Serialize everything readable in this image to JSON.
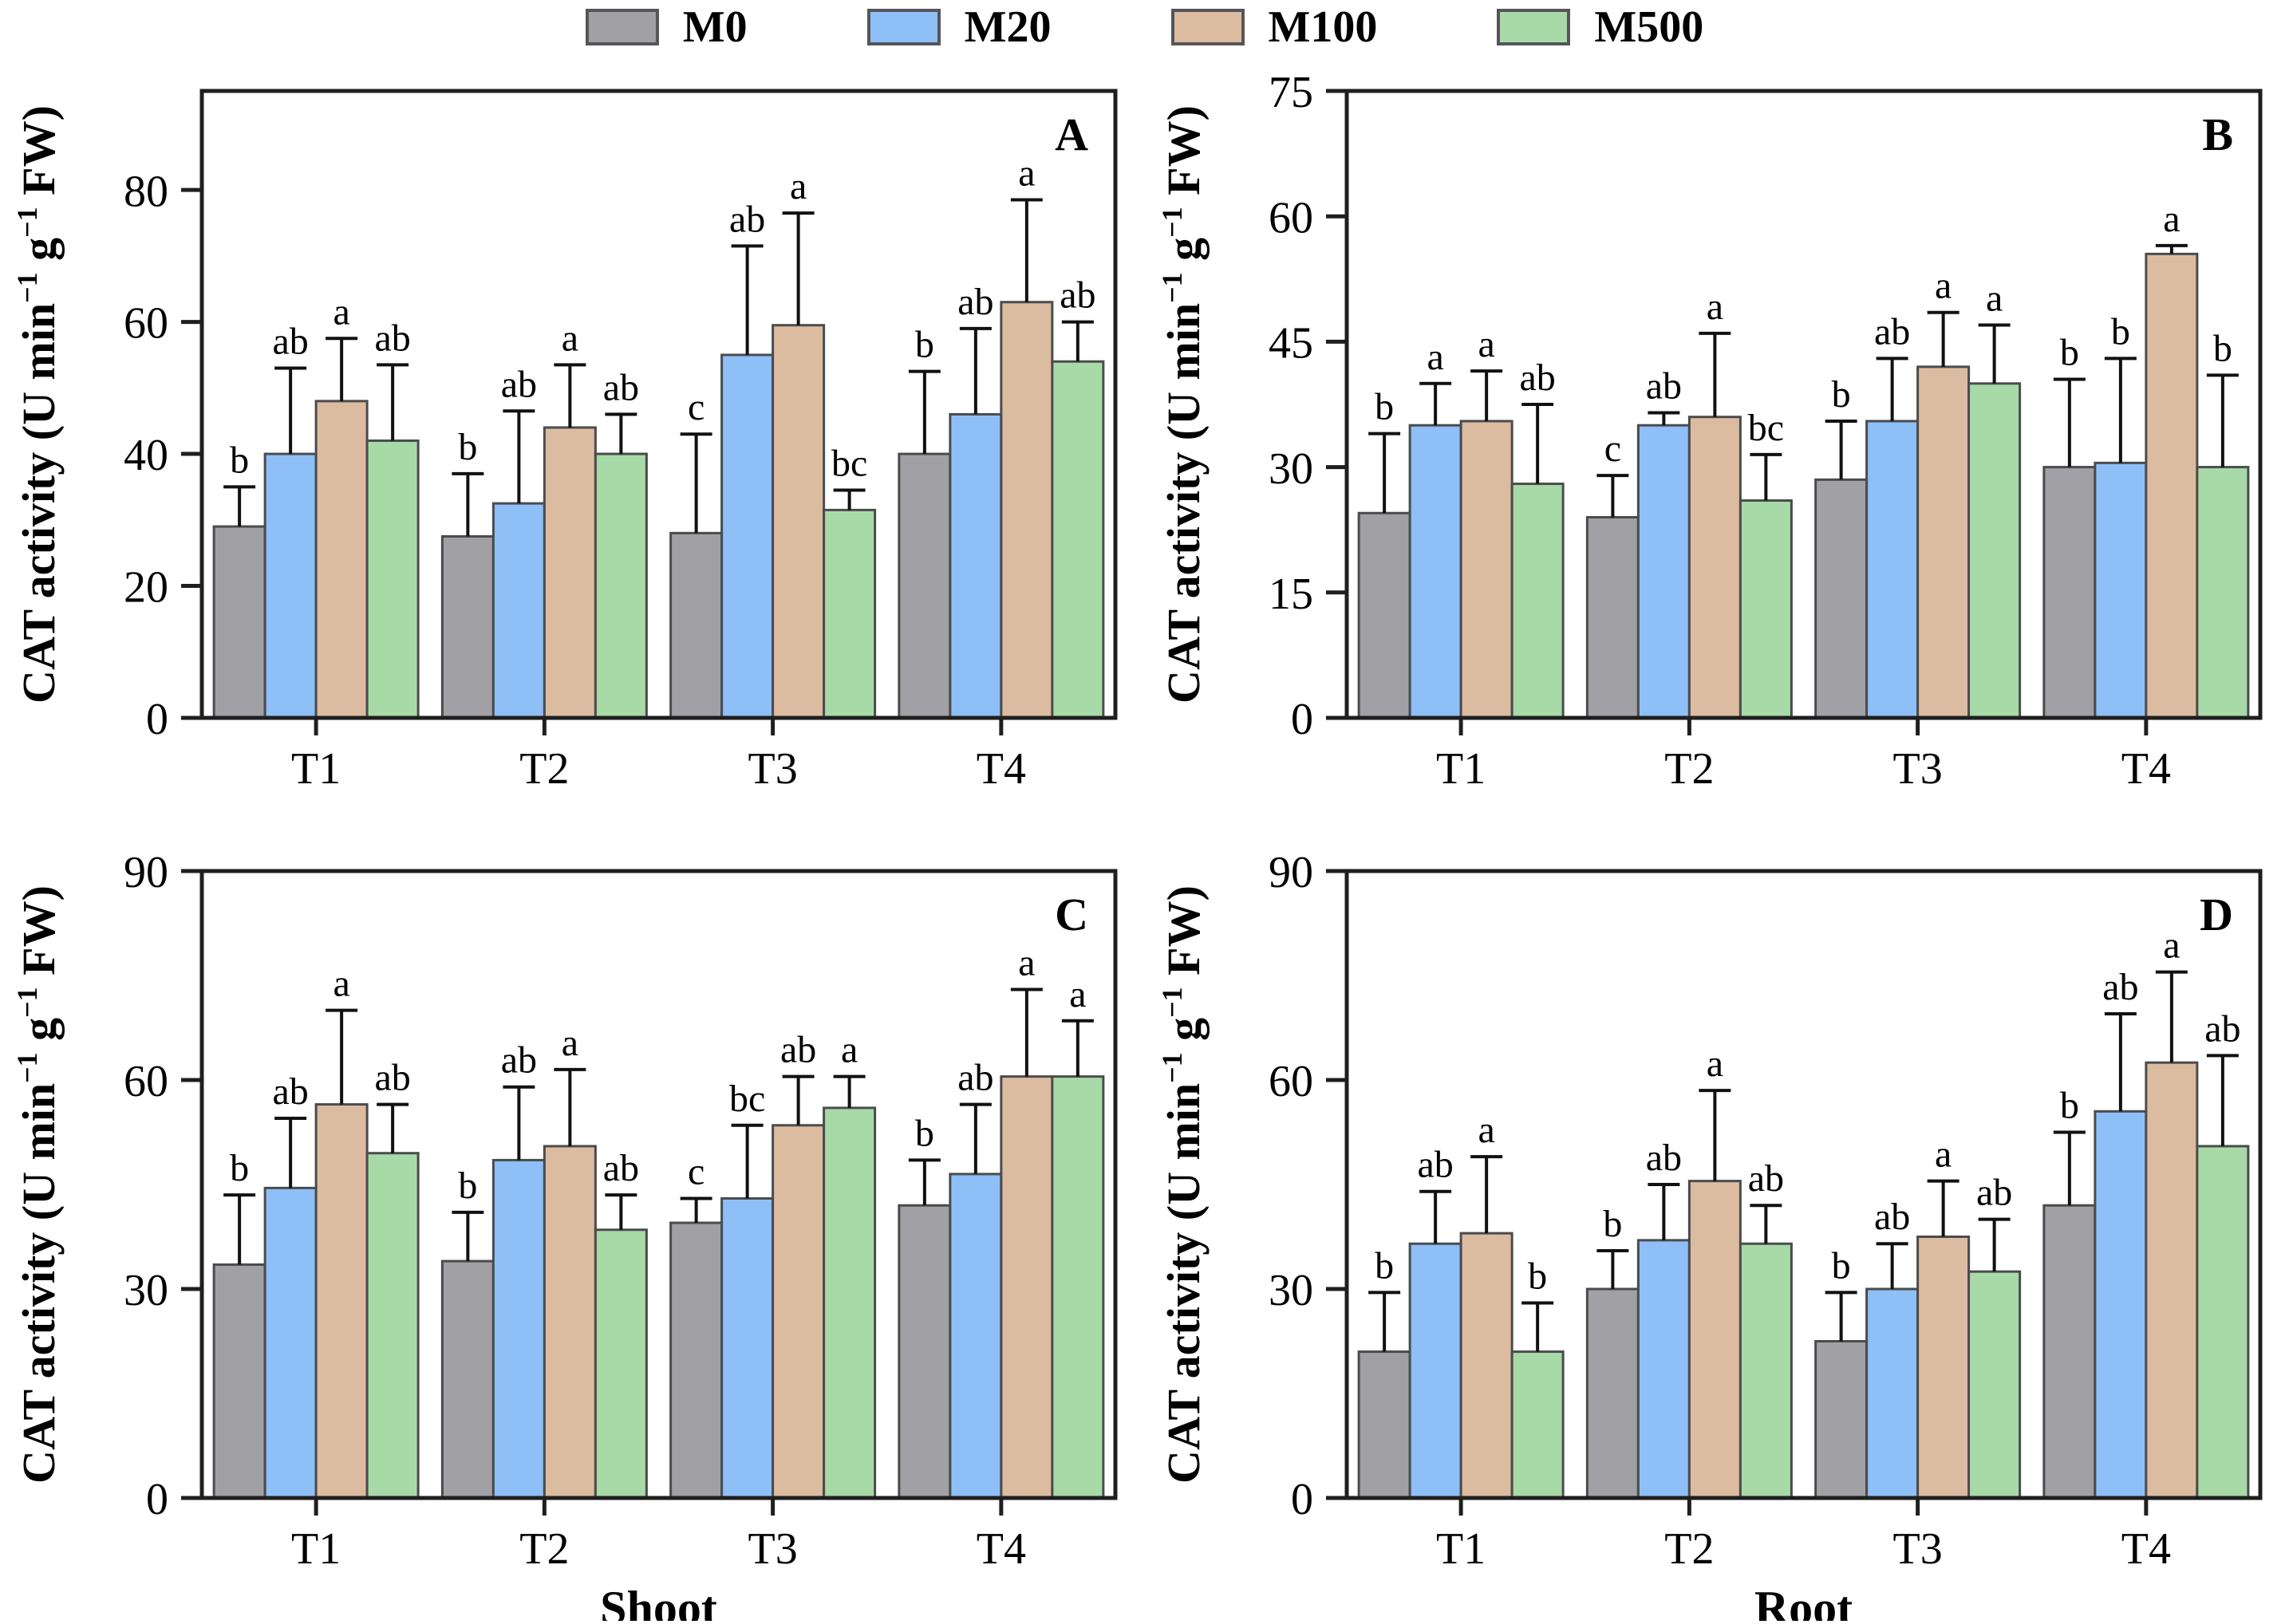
{
  "figure": {
    "background": "#ffffff",
    "axis_color": "#1f1f1f",
    "bar_border_color": "#4b4b4e",
    "error_bar_color": "#111111",
    "y_axis_label": "CAT activity (U min⁻¹ g⁻¹ FW)",
    "y_axis_label_parts": [
      {
        "t": "CAT activity (U min"
      },
      {
        "t": "−1",
        "sup": true
      },
      {
        "t": " g",
        "sup": false
      },
      {
        "t": "−1",
        "sup": true
      },
      {
        "t": " FW)",
        "sup": false
      }
    ]
  },
  "legend": {
    "position": "top-center",
    "items": [
      {
        "label": "M0",
        "color": "#A0A0A5"
      },
      {
        "label": "M20",
        "color": "#8EBFF7"
      },
      {
        "label": "M100",
        "color": "#DCBCA0"
      },
      {
        "label": "M500",
        "color": "#A8DAA8"
      }
    ]
  },
  "chart_data": [
    {
      "type": "bar",
      "panel_letter": "A",
      "tissue": "Shoot",
      "xlabel": "",
      "ylabel": "CAT activity (U min⁻¹ g⁻¹ FW)",
      "categories": [
        "T1",
        "T2",
        "T3",
        "T4"
      ],
      "ylim": [
        0,
        95
      ],
      "yticks": [
        0,
        20,
        40,
        60,
        80
      ],
      "grid": false,
      "series": [
        {
          "name": "M0",
          "values": [
            29,
            27.5,
            28,
            40
          ],
          "sd": [
            6,
            9.5,
            15,
            12.5
          ],
          "letters": [
            "b",
            "b",
            "c",
            "b"
          ]
        },
        {
          "name": "M20",
          "values": [
            40,
            32.5,
            55,
            46
          ],
          "sd": [
            13,
            14,
            16.5,
            13
          ],
          "letters": [
            "ab",
            "ab",
            "ab",
            "ab"
          ]
        },
        {
          "name": "M100",
          "values": [
            48,
            44,
            59.5,
            63
          ],
          "sd": [
            9.5,
            9.5,
            17,
            15.5
          ],
          "letters": [
            "a",
            "a",
            "a",
            "a"
          ]
        },
        {
          "name": "M500",
          "values": [
            42,
            40,
            31.5,
            54
          ],
          "sd": [
            11.5,
            6,
            3,
            6
          ],
          "letters": [
            "ab",
            "ab",
            "bc",
            "ab"
          ]
        }
      ]
    },
    {
      "type": "bar",
      "panel_letter": "B",
      "tissue": "Root",
      "xlabel": "",
      "ylabel": "CAT activity (U min⁻¹ g⁻¹ FW)",
      "categories": [
        "T1",
        "T2",
        "T3",
        "T4"
      ],
      "ylim": [
        0,
        75
      ],
      "yticks": [
        0,
        15,
        30,
        45,
        60,
        75
      ],
      "grid": false,
      "series": [
        {
          "name": "M0",
          "values": [
            24.5,
            24,
            28.5,
            30
          ],
          "sd": [
            9.5,
            5,
            7,
            10.5
          ],
          "letters": [
            "b",
            "c",
            "b",
            "b"
          ]
        },
        {
          "name": "M20",
          "values": [
            35,
            35,
            35.5,
            30.5
          ],
          "sd": [
            5,
            1.5,
            7.5,
            12.5
          ],
          "letters": [
            "a",
            "ab",
            "ab",
            "b"
          ]
        },
        {
          "name": "M100",
          "values": [
            35.5,
            36,
            42,
            55.5
          ],
          "sd": [
            6,
            10,
            6.5,
            1
          ],
          "letters": [
            "a",
            "a",
            "a",
            "a"
          ]
        },
        {
          "name": "M500",
          "values": [
            28,
            26,
            40,
            30
          ],
          "sd": [
            9.5,
            5.5,
            7,
            11
          ],
          "letters": [
            "ab",
            "bc",
            "a",
            "b"
          ]
        }
      ]
    },
    {
      "type": "bar",
      "panel_letter": "C",
      "tissue": "Shoot",
      "xlabel": "Shoot",
      "ylabel": "CAT activity (U min⁻¹ g⁻¹ FW)",
      "categories": [
        "T1",
        "T2",
        "T3",
        "T4"
      ],
      "ylim": [
        0,
        90
      ],
      "yticks": [
        0,
        30,
        60,
        90
      ],
      "grid": false,
      "series": [
        {
          "name": "M0",
          "values": [
            33.5,
            34,
            39.5,
            42
          ],
          "sd": [
            10,
            7,
            3.5,
            6.5
          ],
          "letters": [
            "b",
            "b",
            "c",
            "b"
          ]
        },
        {
          "name": "M20",
          "values": [
            44.5,
            48.5,
            43,
            46.5
          ],
          "sd": [
            10,
            10.5,
            10.5,
            10
          ],
          "letters": [
            "ab",
            "ab",
            "bc",
            "ab"
          ]
        },
        {
          "name": "M100",
          "values": [
            56.5,
            50.5,
            53.5,
            60.5
          ],
          "sd": [
            13.5,
            11,
            7,
            12.5
          ],
          "letters": [
            "a",
            "a",
            "ab",
            "a"
          ]
        },
        {
          "name": "M500",
          "values": [
            49.5,
            38.5,
            56,
            60.5
          ],
          "sd": [
            7,
            5,
            4.5,
            8
          ],
          "letters": [
            "ab",
            "ab",
            "a",
            "a"
          ]
        }
      ]
    },
    {
      "type": "bar",
      "panel_letter": "D",
      "tissue": "Root",
      "xlabel": "Root",
      "ylabel": "CAT activity (U min⁻¹ g⁻¹ FW)",
      "categories": [
        "T1",
        "T2",
        "T3",
        "T4"
      ],
      "ylim": [
        0,
        90
      ],
      "yticks": [
        0,
        30,
        60,
        90
      ],
      "grid": false,
      "series": [
        {
          "name": "M0",
          "values": [
            21,
            30,
            22.5,
            42
          ],
          "sd": [
            8.5,
            5.5,
            7,
            10.5
          ],
          "letters": [
            "b",
            "b",
            "b",
            "b"
          ]
        },
        {
          "name": "M20",
          "values": [
            36.5,
            37,
            30,
            55.5
          ],
          "sd": [
            7.5,
            8,
            6.5,
            14
          ],
          "letters": [
            "ab",
            "ab",
            "ab",
            "ab"
          ]
        },
        {
          "name": "M100",
          "values": [
            38,
            45.5,
            37.5,
            62.5
          ],
          "sd": [
            11,
            13,
            8,
            13
          ],
          "letters": [
            "a",
            "a",
            "a",
            "a"
          ]
        },
        {
          "name": "M500",
          "values": [
            21,
            36.5,
            32.5,
            50.5
          ],
          "sd": [
            7,
            5.5,
            7.5,
            13
          ],
          "letters": [
            "b",
            "ab",
            "ab",
            "ab"
          ]
        }
      ]
    }
  ]
}
